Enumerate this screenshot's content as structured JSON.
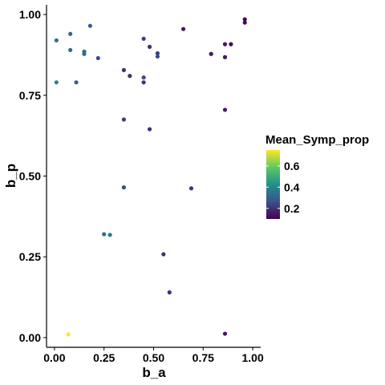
{
  "chart_data": {
    "type": "scatter",
    "xlabel": "b_a",
    "ylabel": "b_p",
    "xlim": [
      -0.04,
      1.04
    ],
    "ylim": [
      -0.03,
      1.03
    ],
    "x_ticks": [
      0,
      0.25,
      0.5,
      0.75,
      1
    ],
    "x_tick_labels": [
      "0.00",
      "0.25",
      "0.50",
      "0.75",
      "1.00"
    ],
    "y_ticks": [
      0,
      0.25,
      0.5,
      0.75,
      1
    ],
    "y_tick_labels": [
      "0.00",
      "0.25",
      "0.50",
      "0.75",
      "1.00"
    ],
    "grid": false,
    "legend": {
      "title": "Mean_Symp_prop",
      "placement": "right",
      "min": 0.1,
      "max": 0.75,
      "ticks": [
        0.2,
        0.4,
        0.6
      ],
      "tick_labels": [
        "0.2",
        "0.4",
        "0.6"
      ],
      "colors": [
        "#440154",
        "#3b528b",
        "#21908c",
        "#5dc963",
        "#fde725"
      ]
    },
    "points": [
      {
        "x": 0.01,
        "y": 0.92,
        "c": 0.35
      },
      {
        "x": 0.01,
        "y": 0.79,
        "c": 0.4
      },
      {
        "x": 0.08,
        "y": 0.94,
        "c": 0.33
      },
      {
        "x": 0.08,
        "y": 0.89,
        "c": 0.35
      },
      {
        "x": 0.07,
        "y": 0.01,
        "c": 0.75
      },
      {
        "x": 0.11,
        "y": 0.79,
        "c": 0.3
      },
      {
        "x": 0.15,
        "y": 0.885,
        "c": 0.32
      },
      {
        "x": 0.15,
        "y": 0.878,
        "c": 0.34
      },
      {
        "x": 0.18,
        "y": 0.965,
        "c": 0.3
      },
      {
        "x": 0.22,
        "y": 0.865,
        "c": 0.25
      },
      {
        "x": 0.25,
        "y": 0.32,
        "c": 0.35
      },
      {
        "x": 0.28,
        "y": 0.318,
        "c": 0.37
      },
      {
        "x": 0.35,
        "y": 0.828,
        "c": 0.2
      },
      {
        "x": 0.38,
        "y": 0.81,
        "c": 0.2
      },
      {
        "x": 0.35,
        "y": 0.675,
        "c": 0.22
      },
      {
        "x": 0.35,
        "y": 0.465,
        "c": 0.25
      },
      {
        "x": 0.45,
        "y": 0.925,
        "c": 0.22
      },
      {
        "x": 0.48,
        "y": 0.9,
        "c": 0.2
      },
      {
        "x": 0.45,
        "y": 0.805,
        "c": 0.25
      },
      {
        "x": 0.45,
        "y": 0.79,
        "c": 0.2
      },
      {
        "x": 0.52,
        "y": 0.88,
        "c": 0.22
      },
      {
        "x": 0.52,
        "y": 0.87,
        "c": 0.25
      },
      {
        "x": 0.48,
        "y": 0.645,
        "c": 0.2
      },
      {
        "x": 0.55,
        "y": 0.258,
        "c": 0.2
      },
      {
        "x": 0.58,
        "y": 0.14,
        "c": 0.2
      },
      {
        "x": 0.65,
        "y": 0.955,
        "c": 0.15
      },
      {
        "x": 0.69,
        "y": 0.462,
        "c": 0.2
      },
      {
        "x": 0.79,
        "y": 0.878,
        "c": 0.15
      },
      {
        "x": 0.86,
        "y": 0.908,
        "c": 0.15
      },
      {
        "x": 0.86,
        "y": 0.868,
        "c": 0.15
      },
      {
        "x": 0.89,
        "y": 0.908,
        "c": 0.12
      },
      {
        "x": 0.86,
        "y": 0.705,
        "c": 0.15
      },
      {
        "x": 0.86,
        "y": 0.012,
        "c": 0.15
      },
      {
        "x": 0.96,
        "y": 0.985,
        "c": 0.12
      },
      {
        "x": 0.96,
        "y": 0.975,
        "c": 0.12
      }
    ]
  }
}
